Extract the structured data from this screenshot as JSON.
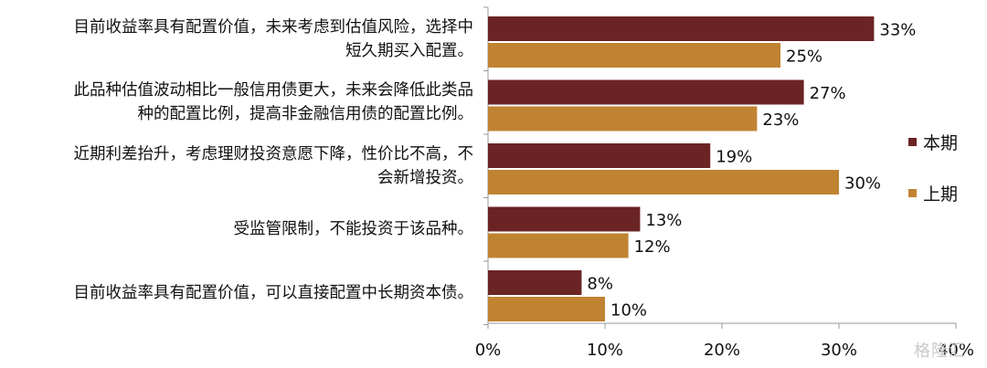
{
  "chart_data": {
    "type": "bar",
    "orientation": "horizontal",
    "categories": [
      [
        "目前收益率具有配置价值，未来考虑到估值风险，选择中",
        "短久期买入配置。"
      ],
      [
        "此品种估值波动相比一般信用债更大，未来会降低此类品",
        "种的配置比例，提高非金融信用债的配置比例。"
      ],
      [
        "近期利差抬升，考虑理财投资意愿下降，性价比不高，不",
        "会新增投资。"
      ],
      [
        "受监管限制，不能投资于该品种。"
      ],
      [
        "目前收益率具有配置价值，可以直接配置中长期资本债。"
      ]
    ],
    "series": [
      {
        "name": "本期",
        "values": [
          33,
          27,
          19,
          13,
          8
        ],
        "color": "#6b2424"
      },
      {
        "name": "上期",
        "values": [
          25,
          23,
          30,
          12,
          10
        ],
        "color": "#c08332"
      }
    ],
    "value_suffix": "%",
    "xlim": [
      0,
      40
    ],
    "xticks": [
      "0%",
      "10%",
      "20%",
      "30%",
      "40%"
    ],
    "grid": false,
    "legend_position": "right"
  },
  "watermark": "格隆汇"
}
